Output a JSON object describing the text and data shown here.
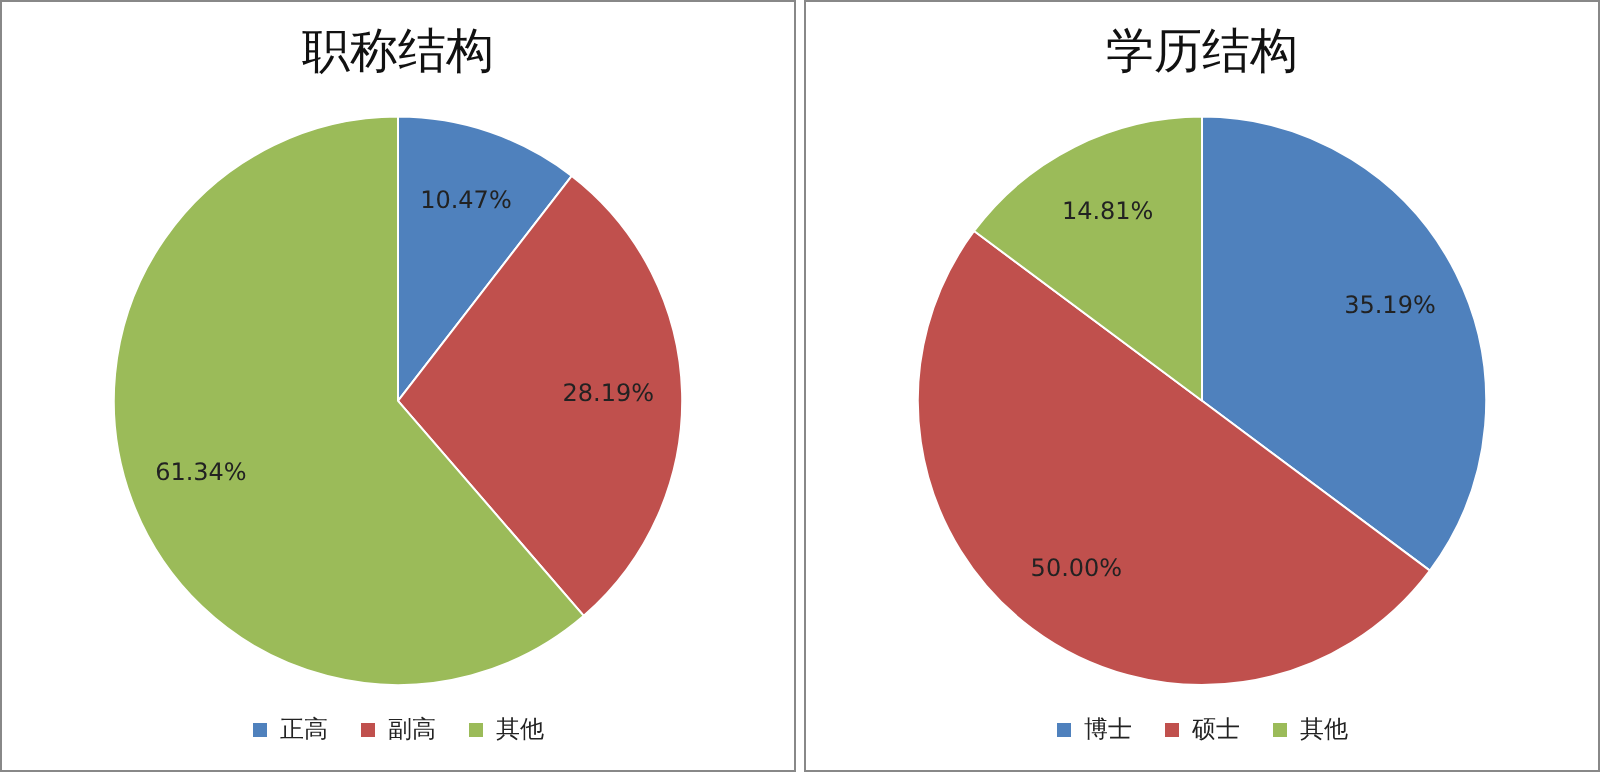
{
  "chart_data": [
    {
      "type": "pie",
      "title": "职称结构",
      "categories": [
        "正高",
        "副高",
        "其他"
      ],
      "values": [
        10.47,
        28.19,
        61.34
      ],
      "colors": [
        "#4f81bd",
        "#c0504d",
        "#9bbb59"
      ],
      "value_labels": [
        "10.47%",
        "28.19%",
        "61.34%"
      ],
      "legend": "bottom"
    },
    {
      "type": "pie",
      "title": "学历结构",
      "categories": [
        "博士",
        "硕士",
        "其他"
      ],
      "values": [
        35.19,
        50.0,
        14.81
      ],
      "colors": [
        "#4f81bd",
        "#c0504d",
        "#9bbb59"
      ],
      "value_labels": [
        "35.19%",
        "50.00%",
        "14.81%"
      ],
      "legend": "bottom"
    }
  ]
}
